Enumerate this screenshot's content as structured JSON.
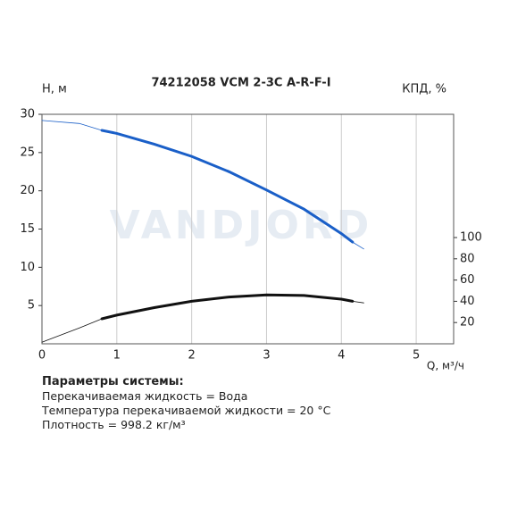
{
  "chart_data": {
    "type": "line",
    "title": "74212058 VCM 2-3C A-R-F-I",
    "watermark": "VANDJORD",
    "y_label": "H, м",
    "y2_label": "КПД, %",
    "x_label": "Q, м³/ч",
    "x": [
      0,
      0.5,
      0.8,
      1,
      1.5,
      2,
      2.5,
      3,
      3.5,
      4,
      4.15,
      4.3
    ],
    "series": [
      {
        "color": "#1a5fc8",
        "width": 0.8,
        "values": [
          29.2,
          28.8,
          27.9,
          null,
          null,
          null,
          null,
          null,
          null,
          null,
          13.3,
          12.4
        ]
      },
      {
        "color": "#1a5fc8",
        "width": 3,
        "values": [
          null,
          null,
          27.9,
          27.5,
          26.1,
          24.5,
          22.5,
          20.1,
          17.6,
          14.4,
          13.3,
          null
        ]
      },
      {
        "color": "#111111",
        "width": 0.8,
        "axis": "y2",
        "values": [
          1.5,
          15,
          23.5,
          null,
          null,
          null,
          null,
          null,
          null,
          null,
          40,
          38.5
        ]
      },
      {
        "color": "#111111",
        "width": 3,
        "axis": "y2",
        "values": [
          null,
          null,
          23.5,
          27,
          34,
          40,
          44,
          46,
          45.5,
          42,
          40,
          null
        ]
      }
    ],
    "xlim": [
      0,
      5.5
    ],
    "xticks": [
      0,
      1,
      2,
      3,
      4,
      5
    ],
    "ylim": [
      0,
      30
    ],
    "yticks": [
      5,
      10,
      15,
      20,
      25,
      30
    ],
    "y2lim": [
      0,
      216
    ],
    "y2ticks": [
      20,
      40,
      60,
      80,
      100
    ],
    "grid": true
  },
  "info": {
    "heading": "Параметры системы:",
    "lines": [
      "Перекачиваемая жидкость = Вода",
      "Температура перекачиваемой жидкости = 20 °C",
      "Плотность = 998.2 кг/м³"
    ]
  }
}
